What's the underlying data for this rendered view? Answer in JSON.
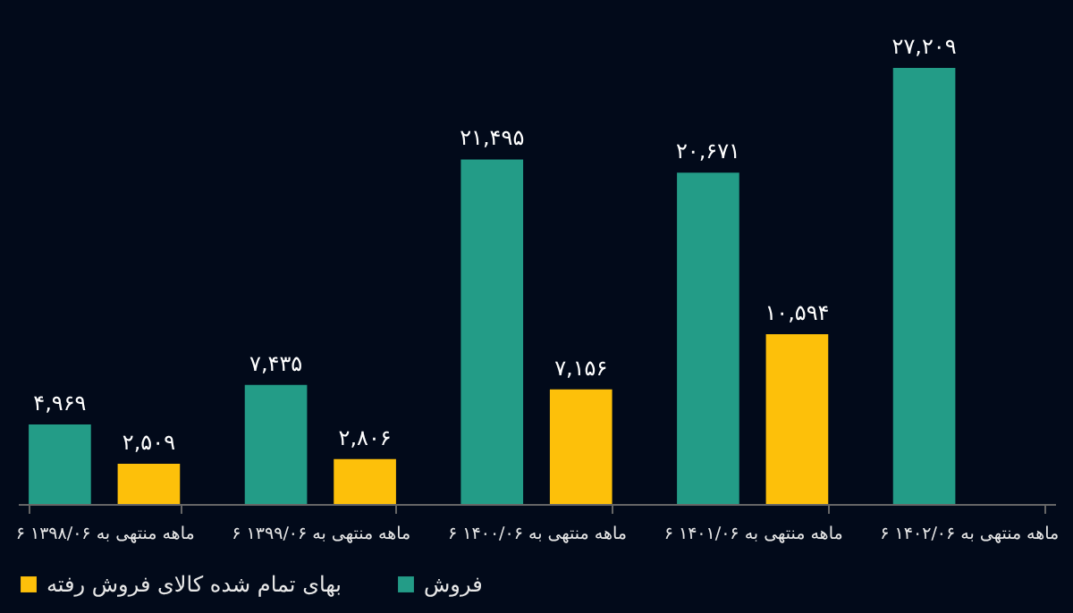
{
  "chart_data": {
    "type": "bar",
    "categories": [
      "۶ ماهه منتهی به ۱۳۹۸/۰۶",
      "۶ ماهه منتهی به ۱۳۹۹/۰۶",
      "۶ ماهه منتهی به ۱۴۰۰/۰۶",
      "۶ ماهه منتهی به ۱۴۰۱/۰۶",
      "۶ ماهه منتهی به ۱۴۰۲/۰۶"
    ],
    "series": [
      {
        "name": "فروش",
        "color": "#239c87",
        "values": [
          4969,
          7435,
          21495,
          20671,
          27209
        ],
        "value_labels": [
          "۴,۹۶۹",
          "۷,۴۳۵",
          "۲۱,۴۹۵",
          "۲۰,۶۷۱",
          "۲۷,۲۰۹"
        ]
      },
      {
        "name": "بهای تمام شده کالای فروش رفته",
        "color": "#fdc00a",
        "values": [
          2509,
          2806,
          7156,
          10594,
          null
        ],
        "value_labels": [
          "۲,۵۰۹",
          "۲,۸۰۶",
          "۷,۱۵۶",
          "۱۰,۵۹۴",
          null
        ]
      }
    ],
    "legend": "bottom"
  }
}
